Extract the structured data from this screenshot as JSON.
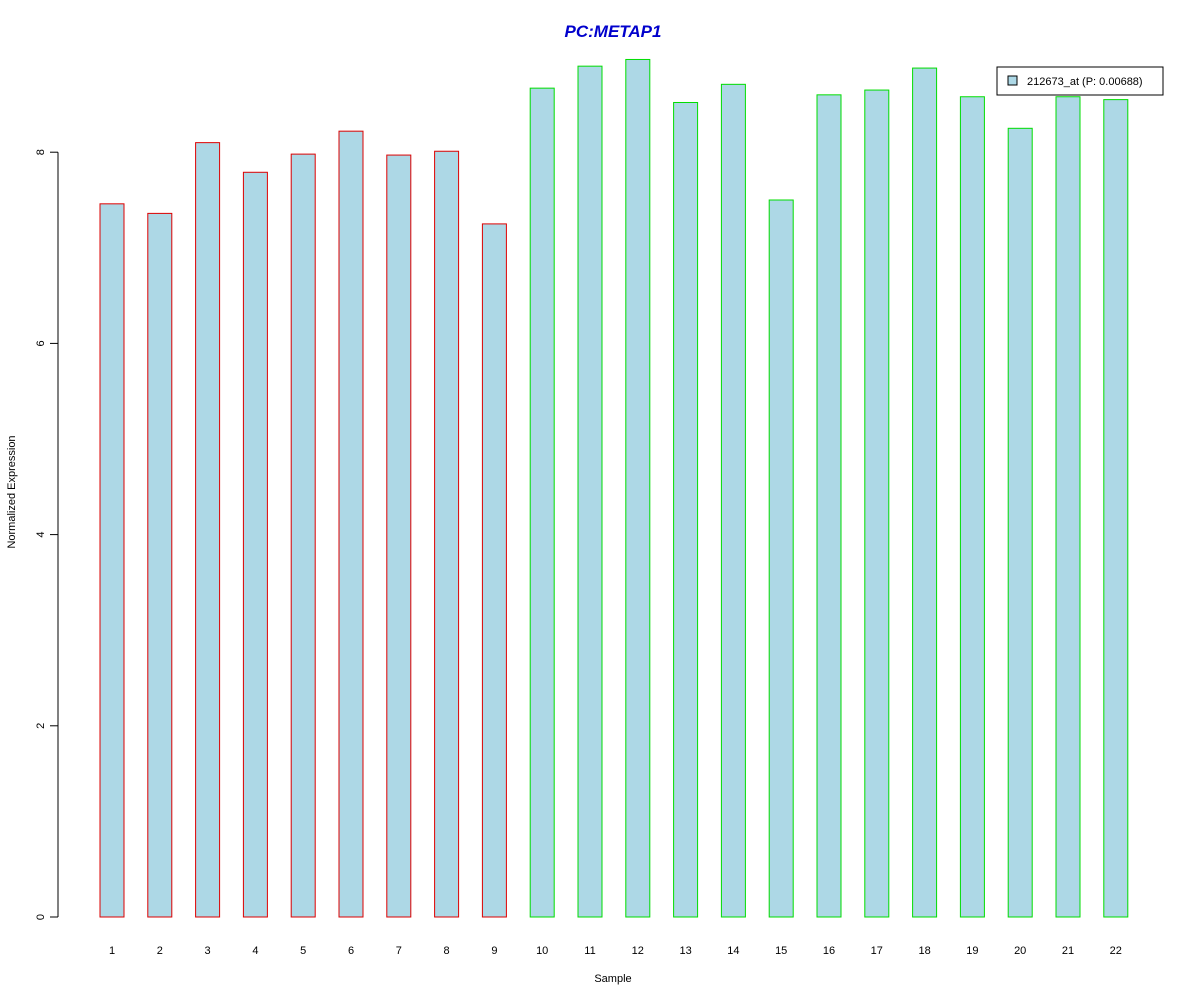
{
  "chart_data": {
    "type": "bar",
    "title": "PC:METAP1",
    "xlabel": "Sample",
    "ylabel": "Normalized Expression",
    "categories": [
      "1",
      "2",
      "3",
      "4",
      "5",
      "6",
      "7",
      "8",
      "9",
      "10",
      "11",
      "12",
      "13",
      "14",
      "15",
      "16",
      "17",
      "18",
      "19",
      "20",
      "21",
      "22"
    ],
    "series": [
      {
        "name": "212673_at (P: 0.00688)",
        "values": [
          7.46,
          7.36,
          8.1,
          7.79,
          7.98,
          8.22,
          7.97,
          8.01,
          7.25,
          8.67,
          8.9,
          8.97,
          8.52,
          8.71,
          7.5,
          8.6,
          8.65,
          8.88,
          8.58,
          8.25,
          8.58,
          8.55
        ]
      }
    ],
    "bar_outline_colors": [
      "#dd0000",
      "#dd0000",
      "#dd0000",
      "#dd0000",
      "#dd0000",
      "#dd0000",
      "#dd0000",
      "#dd0000",
      "#dd0000",
      "#00dd00",
      "#00dd00",
      "#00dd00",
      "#00dd00",
      "#00dd00",
      "#00dd00",
      "#00dd00",
      "#00dd00",
      "#00dd00",
      "#00dd00",
      "#00dd00",
      "#00dd00",
      "#00dd00"
    ],
    "yticks": [
      "0",
      "2",
      "4",
      "6",
      "8"
    ],
    "ylim": [
      0,
      9.35
    ],
    "grid": false,
    "legend_position": "top-right"
  },
  "colors": {
    "title": "#0000cc",
    "bar_fill": "#add8e6",
    "axis": "#000000",
    "legend_border": "#000000"
  }
}
